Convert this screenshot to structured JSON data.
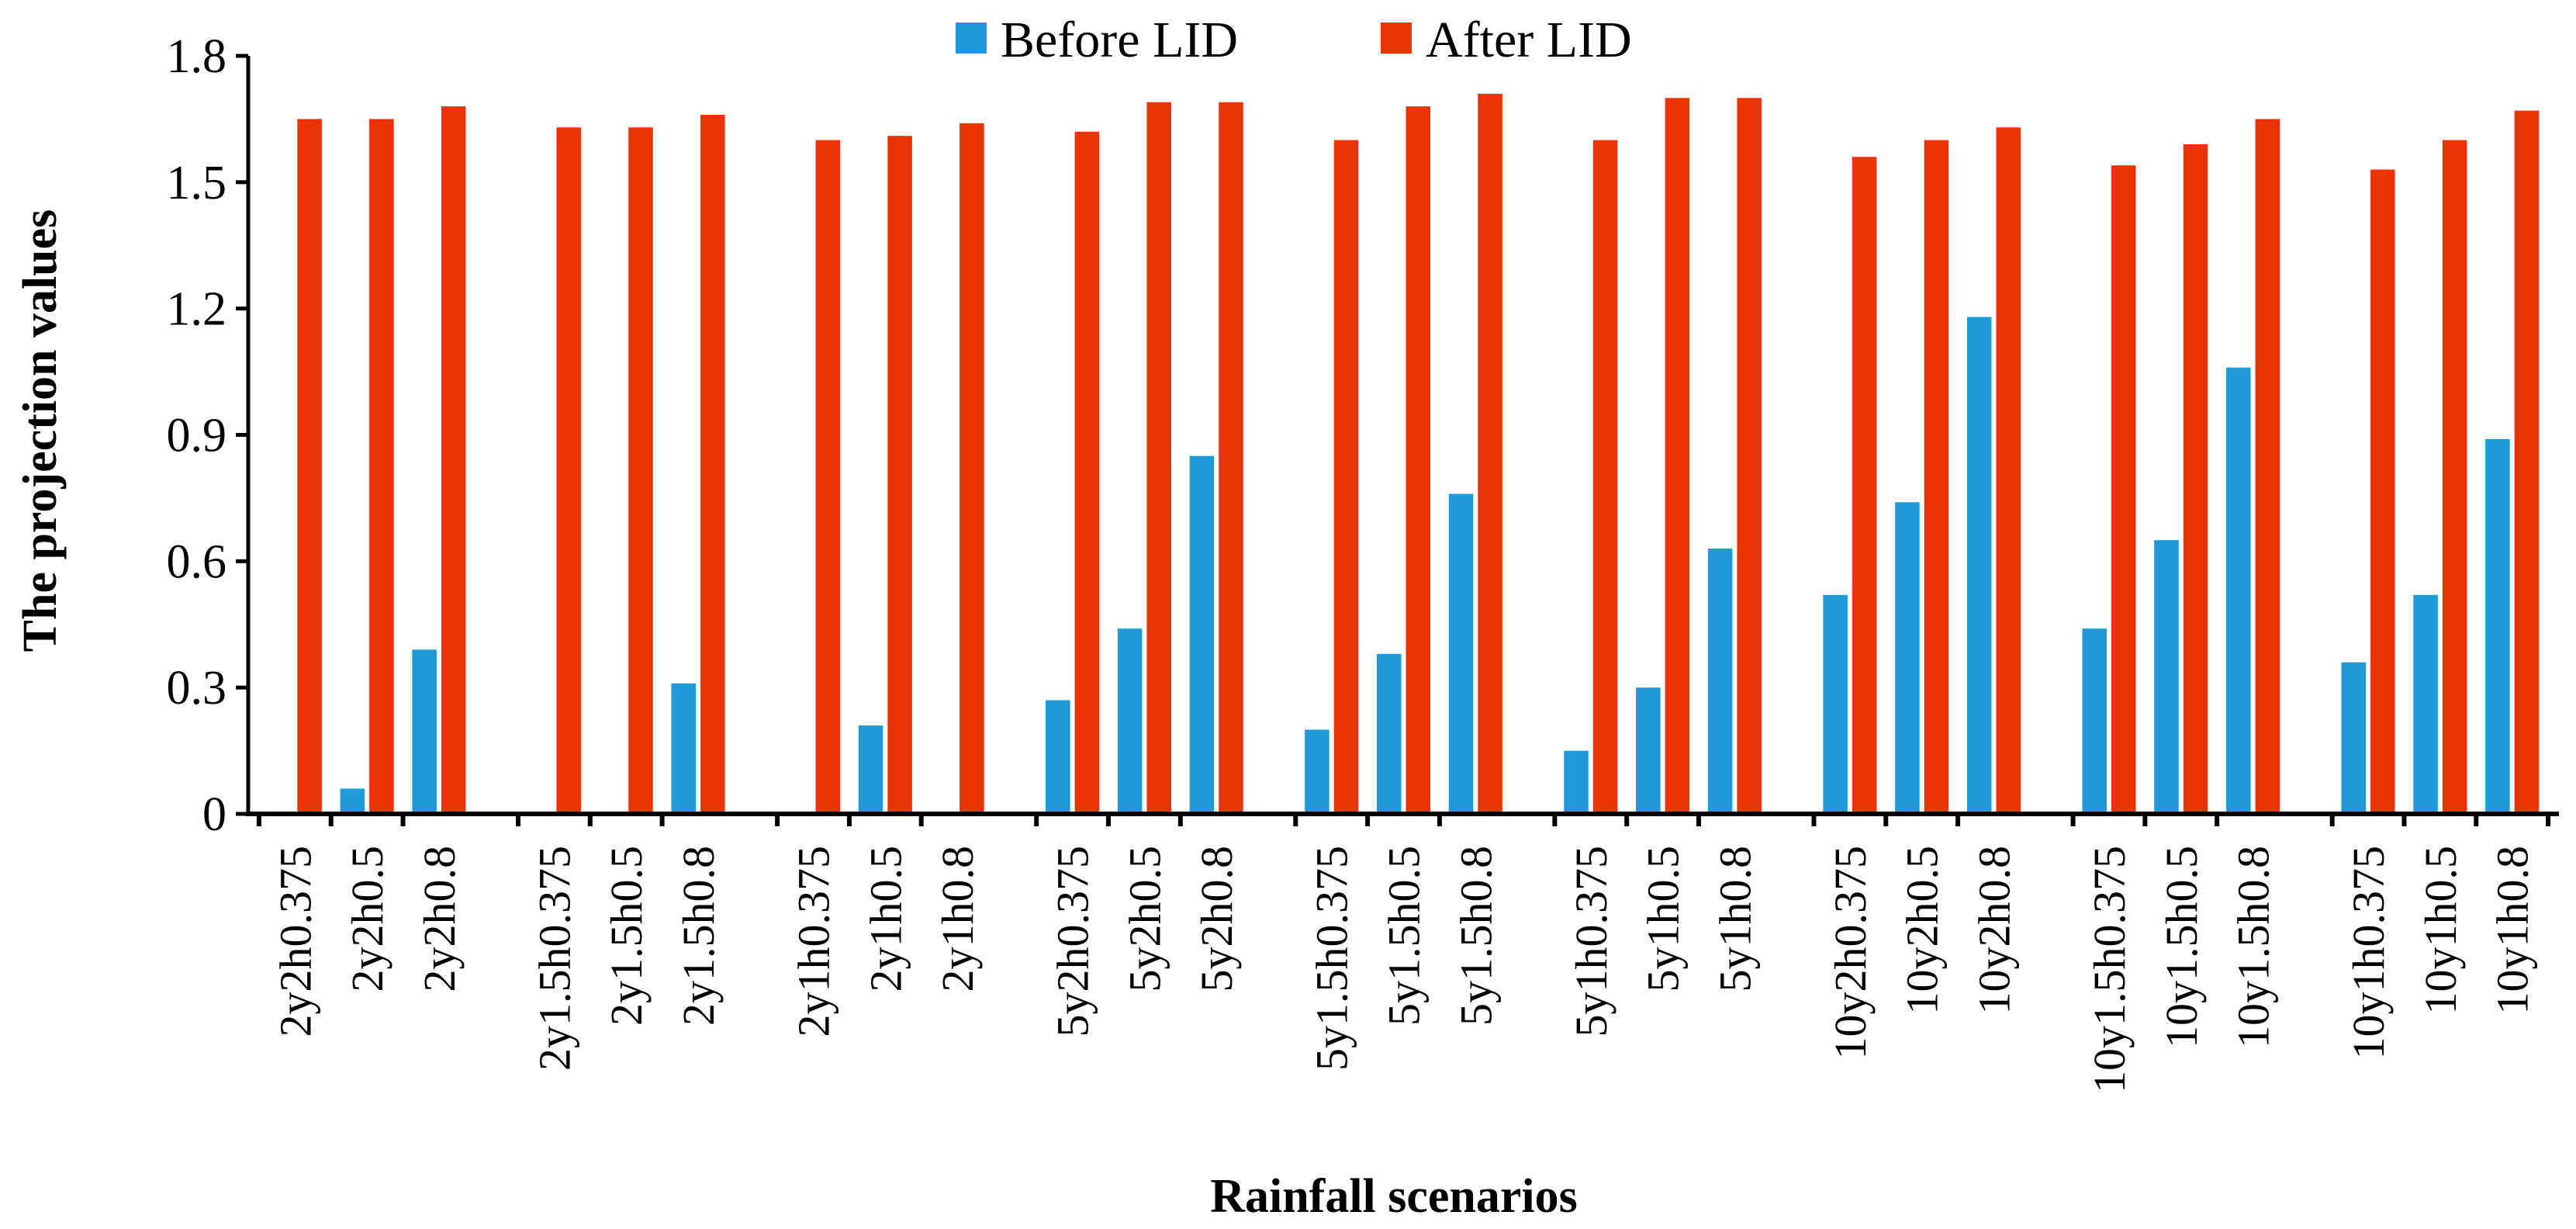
{
  "chart_data": {
    "type": "bar",
    "title": "",
    "xlabel": "Rainfall scenarios",
    "ylabel": "The projection values",
    "ylim": [
      0,
      1.8
    ],
    "yticks": [
      "0",
      "0.3",
      "0.6",
      "0.9",
      "1.2",
      "1.5",
      "1.8"
    ],
    "legend_position": "top-center",
    "groups": 9,
    "categories": [
      "2y2h0.375",
      "2y2h0.5",
      "2y2h0.8",
      "2y1.5h0.375",
      "2y1.5h0.5",
      "2y1.5h0.8",
      "2y1h0.375",
      "2y1h0.5",
      "2y1h0.8",
      "5y2h0.375",
      "5y2h0.5",
      "5y2h0.8",
      "5y1.5h0.375",
      "5y1.5h0.5",
      "5y1.5h0.8",
      "5y1h0.375",
      "5y1h0.5",
      "5y1h0.8",
      "10y2h0.375",
      "10y2h0.5",
      "10y2h0.8",
      "10y1.5h0.375",
      "10y1.5h0.5",
      "10y1.5h0.8",
      "10y1h0.375",
      "10y1h0.5",
      "10y1h0.8"
    ],
    "series": [
      {
        "name": "Before LID",
        "color": "#1f9ad6",
        "values": [
          0,
          0.06,
          0.39,
          0,
          0,
          0.31,
          0,
          0.21,
          0,
          0.27,
          0.44,
          0.85,
          0.2,
          0.38,
          0.76,
          0.15,
          0.3,
          0.63,
          0.52,
          0.74,
          1.18,
          0.44,
          0.65,
          1.06,
          0.36,
          0.52,
          0.89
        ]
      },
      {
        "name": "After LID",
        "color": "#eb3308",
        "values": [
          1.65,
          1.65,
          1.68,
          1.63,
          1.63,
          1.66,
          1.6,
          1.61,
          1.64,
          1.62,
          1.69,
          1.69,
          1.6,
          1.68,
          1.71,
          1.6,
          1.7,
          1.7,
          1.56,
          1.6,
          1.63,
          1.54,
          1.59,
          1.65,
          1.53,
          1.6,
          1.67
        ]
      }
    ]
  }
}
